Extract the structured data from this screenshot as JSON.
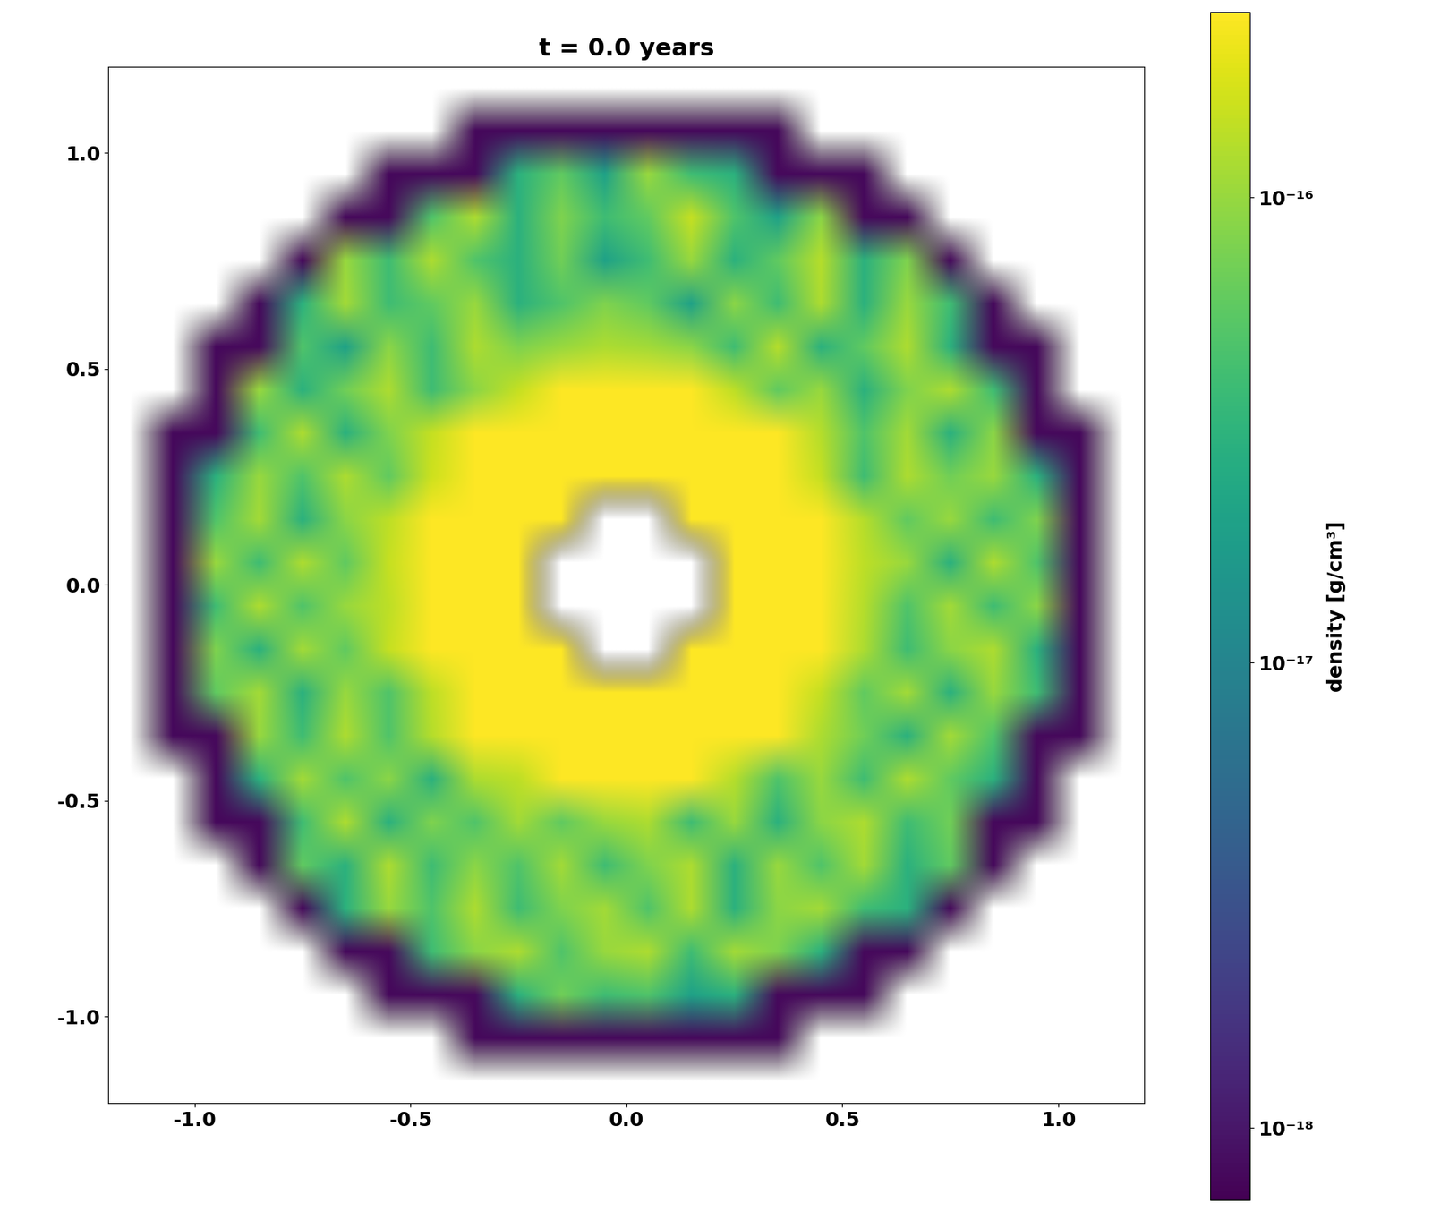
{
  "chart_data": {
    "type": "heatmap",
    "title": "t = 0.0 years",
    "colorbar_label": "density [g/cm³]",
    "color": "viridis",
    "log": true,
    "xlim": [
      -1.2,
      1.2
    ],
    "ylim": [
      -1.2,
      1.2
    ],
    "xticks": [
      -1.0,
      -0.5,
      0.0,
      0.5,
      1.0
    ],
    "yticks": [
      -1.0,
      -0.5,
      0.0,
      0.5,
      1.0
    ],
    "colorbar_range": [
      7e-19,
      2.5e-16
    ],
    "colorbar_ticks": [
      {
        "value": 1e-18,
        "label": "10⁻¹⁸"
      },
      {
        "value": 1e-17,
        "label": "10⁻¹⁷"
      },
      {
        "value": 1e-16,
        "label": "10⁻¹⁶"
      }
    ],
    "cells": [
      [
        null,
        null,
        null,
        null,
        null,
        null,
        null,
        null,
        null,
        null,
        null,
        null,
        null,
        null,
        null,
        null,
        null,
        null,
        null,
        null,
        null,
        null,
        null,
        null
      ],
      [
        null,
        null,
        null,
        null,
        null,
        null,
        null,
        null,
        8e-19,
        8e-19,
        8e-19,
        8e-19,
        8e-19,
        8e-19,
        8e-19,
        8e-19,
        null,
        null,
        null,
        null,
        null,
        null,
        null,
        null
      ],
      [
        null,
        null,
        null,
        null,
        null,
        null,
        8e-19,
        8e-19,
        8e-19,
        3e-17,
        6e-17,
        2e-17,
        1e-16,
        4e-17,
        3e-17,
        8e-19,
        8e-19,
        8e-19,
        null,
        null,
        null,
        null,
        null,
        null
      ],
      [
        null,
        null,
        null,
        null,
        null,
        8e-19,
        8e-19,
        5e-17,
        1.2e-16,
        3e-17,
        8e-17,
        4e-17,
        6e-17,
        1.5e-16,
        5e-17,
        2e-17,
        9e-17,
        8e-19,
        8e-19,
        null,
        null,
        null,
        null,
        null
      ],
      [
        null,
        null,
        null,
        null,
        8e-19,
        1e-16,
        4e-17,
        1.2e-16,
        5e-17,
        3e-17,
        7e-17,
        2e-17,
        4e-17,
        1e-16,
        3e-17,
        6e-17,
        1.3e-16,
        3e-17,
        8e-17,
        8e-19,
        null,
        null,
        null,
        null
      ],
      [
        null,
        null,
        null,
        8e-19,
        3e-17,
        1.1e-16,
        4e-17,
        6e-17,
        1e-16,
        3e-17,
        5e-17,
        8e-17,
        6e-17,
        2e-17,
        9e-17,
        4e-17,
        1.2e-16,
        3e-17,
        1e-16,
        4e-17,
        8e-19,
        null,
        null,
        null
      ],
      [
        null,
        null,
        8e-19,
        8e-19,
        5e-17,
        2e-17,
        9e-17,
        4e-17,
        1.2e-16,
        8e-17,
        1e-16,
        1.2e-16,
        1.1e-16,
        9e-17,
        4e-17,
        1.3e-16,
        3e-17,
        6e-17,
        1.2e-16,
        3e-17,
        8e-19,
        8e-19,
        null,
        null
      ],
      [
        null,
        null,
        8e-19,
        1e-16,
        3e-17,
        7e-17,
        1.2e-16,
        4e-17,
        9e-17,
        1.5e-16,
        2.5e-16,
        3e-16,
        3e-16,
        2.5e-16,
        1.4e-16,
        6e-17,
        1e-16,
        3e-17,
        8e-17,
        1.2e-16,
        4e-17,
        8e-19,
        null,
        null
      ],
      [
        null,
        8e-19,
        8e-19,
        4e-17,
        1.2e-16,
        3e-17,
        8e-17,
        1.5e-16,
        3e-16,
        3.5e-16,
        3e-16,
        2.5e-16,
        3e-16,
        3e-16,
        4e-16,
        2.5e-16,
        1.3e-16,
        5e-17,
        1.1e-16,
        3e-17,
        9e-17,
        8e-19,
        8e-19,
        null
      ],
      [
        null,
        8e-19,
        3e-17,
        1e-16,
        5e-17,
        1.2e-16,
        6e-17,
        1.6e-16,
        3e-16,
        3.5e-16,
        3e-16,
        3e-16,
        3.5e-16,
        3e-16,
        3e-16,
        3e-16,
        1.5e-16,
        4e-17,
        1.2e-16,
        7e-17,
        1e-16,
        3e-17,
        8e-19,
        null
      ],
      [
        null,
        8e-19,
        5e-17,
        1.1e-16,
        3e-17,
        9e-17,
        1.4e-16,
        2.5e-16,
        3e-16,
        3.5e-16,
        3e-16,
        null,
        null,
        3e-16,
        3.5e-16,
        3e-16,
        2.5e-16,
        1.3e-16,
        6e-17,
        1e-16,
        4e-17,
        8e-17,
        8e-19,
        null
      ],
      [
        null,
        8e-19,
        1e-16,
        4e-17,
        1.2e-16,
        6e-17,
        1.5e-16,
        3e-16,
        3e-16,
        3e-16,
        null,
        null,
        null,
        null,
        3e-16,
        3.5e-16,
        3e-16,
        1.4e-16,
        1e-16,
        3e-17,
        1.2e-16,
        5e-17,
        8e-19,
        null
      ],
      [
        null,
        8e-19,
        4e-17,
        1.2e-16,
        5e-17,
        1e-16,
        1.4e-16,
        3e-16,
        3.5e-16,
        3e-16,
        null,
        null,
        null,
        null,
        3e-16,
        3e-16,
        2.5e-16,
        1.3e-16,
        5e-17,
        1.1e-16,
        4e-17,
        9e-17,
        8e-19,
        null
      ],
      [
        null,
        8e-19,
        8e-17,
        3e-17,
        1.1e-16,
        6e-17,
        1.5e-16,
        3e-16,
        3e-16,
        3.5e-16,
        3e-16,
        null,
        null,
        3e-16,
        3e-16,
        3e-16,
        2.5e-16,
        1.2e-16,
        4e-17,
        9e-17,
        1.2e-16,
        3e-17,
        8e-19,
        null
      ],
      [
        null,
        8e-19,
        6e-17,
        1.1e-16,
        3e-17,
        1e-16,
        5e-17,
        1.4e-16,
        3e-16,
        3e-16,
        3.5e-16,
        3e-16,
        3e-16,
        3.5e-16,
        3e-16,
        3e-16,
        1.5e-16,
        6e-17,
        1.1e-16,
        3e-17,
        1e-16,
        4e-17,
        8e-19,
        null
      ],
      [
        null,
        8e-19,
        8e-19,
        1e-16,
        4e-17,
        1.2e-16,
        5e-17,
        1.3e-16,
        2.5e-16,
        3e-16,
        3e-16,
        3e-16,
        3e-16,
        3e-16,
        3e-16,
        2.5e-16,
        1.2e-16,
        7e-17,
        3e-17,
        1.1e-16,
        5e-17,
        8e-19,
        8e-19,
        null
      ],
      [
        null,
        null,
        8e-19,
        3e-17,
        1.1e-16,
        5e-17,
        9e-17,
        3e-17,
        1.2e-16,
        1.4e-16,
        2.5e-16,
        3e-16,
        3e-16,
        2.5e-16,
        1.3e-16,
        5e-17,
        1e-16,
        4e-17,
        1.2e-16,
        6e-17,
        3e-17,
        8e-19,
        null,
        null
      ],
      [
        null,
        null,
        8e-19,
        8e-19,
        4e-17,
        1.2e-16,
        3e-17,
        8e-17,
        5e-17,
        1.1e-16,
        6e-17,
        1e-16,
        1.2e-16,
        4e-17,
        1e-16,
        3e-17,
        9e-17,
        1.2e-16,
        4e-17,
        7e-17,
        8e-19,
        8e-19,
        null,
        null
      ],
      [
        null,
        null,
        null,
        8e-19,
        6e-17,
        3e-17,
        1.2e-16,
        4e-17,
        9e-17,
        5e-17,
        1.1e-16,
        4e-17,
        8e-17,
        1.2e-16,
        3e-17,
        1e-16,
        5e-17,
        1.1e-16,
        3e-17,
        6e-17,
        8e-19,
        null,
        null,
        null
      ],
      [
        null,
        null,
        null,
        null,
        8e-19,
        3e-17,
        1e-16,
        5e-17,
        1.2e-16,
        4e-17,
        8e-17,
        1.1e-16,
        5e-17,
        1.2e-16,
        3e-17,
        9e-17,
        1.1e-16,
        4e-17,
        3e-17,
        8e-19,
        null,
        null,
        null,
        null
      ],
      [
        null,
        null,
        null,
        null,
        null,
        8e-19,
        8e-19,
        4e-17,
        9e-17,
        1.2e-16,
        5e-17,
        1e-16,
        1.2e-16,
        4e-17,
        1.1e-16,
        8e-17,
        3e-17,
        8e-19,
        8e-19,
        null,
        null,
        null,
        null,
        null
      ],
      [
        null,
        null,
        null,
        null,
        null,
        null,
        8e-19,
        8e-19,
        8e-19,
        3e-17,
        7e-17,
        4e-17,
        5e-17,
        2e-17,
        3e-17,
        8e-19,
        8e-19,
        8e-19,
        null,
        null,
        null,
        null,
        null,
        null
      ],
      [
        null,
        null,
        null,
        null,
        null,
        null,
        null,
        null,
        8e-19,
        8e-19,
        8e-19,
        8e-19,
        8e-19,
        8e-19,
        8e-19,
        8e-19,
        null,
        null,
        null,
        null,
        null,
        null,
        null,
        null
      ],
      [
        null,
        null,
        null,
        null,
        null,
        null,
        null,
        null,
        null,
        null,
        null,
        null,
        null,
        null,
        null,
        null,
        null,
        null,
        null,
        null,
        null,
        null,
        null,
        null
      ]
    ]
  }
}
